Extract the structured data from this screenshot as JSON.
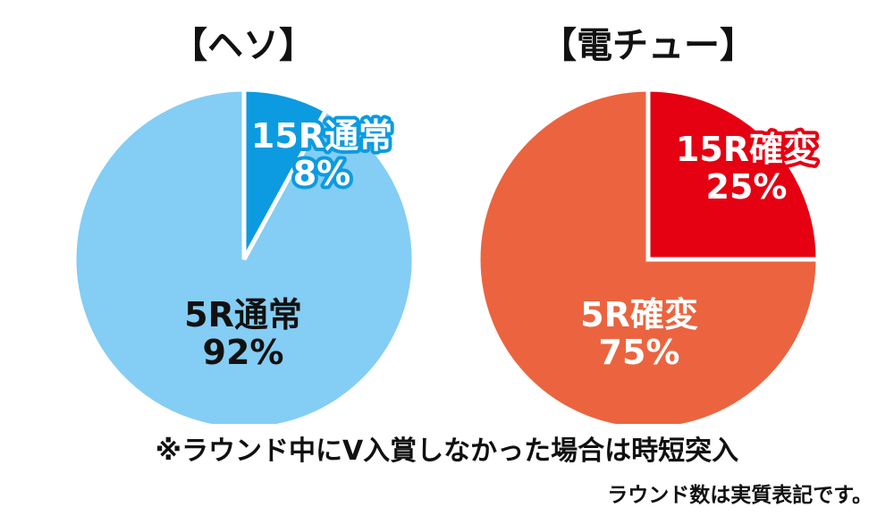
{
  "chart_data": [
    {
      "type": "pie",
      "title": "【ヘソ】",
      "slices": [
        {
          "label": "15R通常",
          "value": 8,
          "value_label": "8%",
          "color": "#0C9BE0",
          "label_color": "#ffffff",
          "outline_color": "#0C9BE0"
        },
        {
          "label": "5R通常",
          "value": 92,
          "value_label": "92%",
          "color": "#84CDF4",
          "label_color": "#111111",
          "outline_color": "none"
        }
      ]
    },
    {
      "type": "pie",
      "title": "【電チュー】",
      "slices": [
        {
          "label": "15R確変",
          "value": 25,
          "value_label": "25%",
          "color": "#E50012",
          "label_color": "#ffffff",
          "outline_color": "#E50012"
        },
        {
          "label": "5R確変",
          "value": 75,
          "value_label": "75%",
          "color": "#EB643F",
          "label_color": "#ffffff",
          "outline_color": "#EB643F"
        }
      ]
    }
  ],
  "note": "※ラウンド中にV入賞しなかった場合は時短突入",
  "footer": "ラウンド数は実質表記です。"
}
